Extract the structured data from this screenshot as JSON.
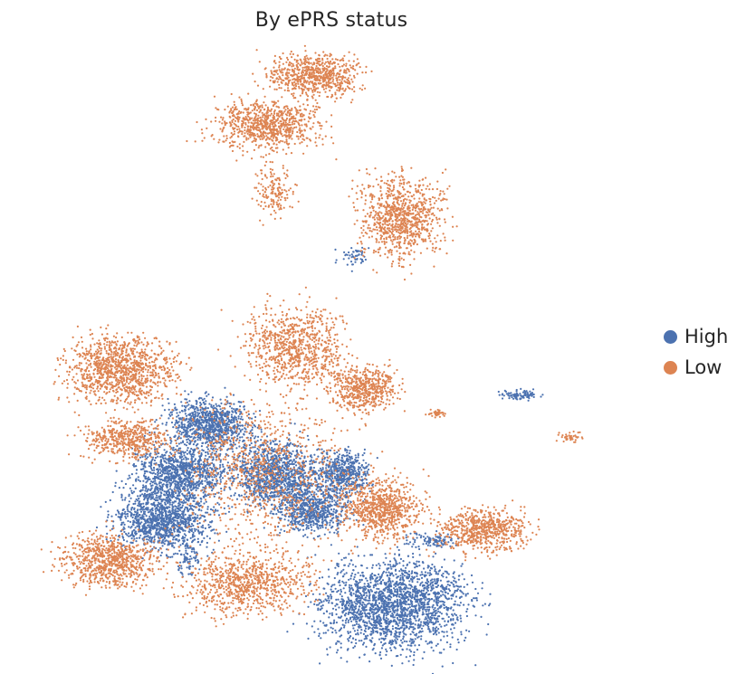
{
  "chart_data": {
    "type": "scatter",
    "title": "By ePRS status",
    "xlabel": "",
    "ylabel": "",
    "axes_visible": false,
    "grid": false,
    "legend_position": "right",
    "series": [
      {
        "name": "High",
        "color": "#4c72b0",
        "clusters": [
          {
            "x": 6.0,
            "y": 8.3,
            "spread": [
              1.6,
              1.0
            ],
            "points": 900
          },
          {
            "x": 5.0,
            "y": 6.4,
            "spread": [
              1.7,
              1.2
            ],
            "points": 1000
          },
          {
            "x": 4.4,
            "y": 4.6,
            "spread": [
              1.8,
              1.3
            ],
            "points": 1200
          },
          {
            "x": 8.2,
            "y": 6.4,
            "spread": [
              1.6,
              1.4
            ],
            "points": 1100
          },
          {
            "x": 9.6,
            "y": 5.0,
            "spread": [
              1.3,
              1.0
            ],
            "points": 700
          },
          {
            "x": 10.6,
            "y": 6.4,
            "spread": [
              1.0,
              0.9
            ],
            "points": 500
          },
          {
            "x": 12.3,
            "y": 1.3,
            "spread": [
              2.7,
              1.9
            ],
            "points": 2100
          },
          {
            "x": 5.3,
            "y": 3.0,
            "spread": [
              0.5,
              0.8
            ],
            "points": 80
          },
          {
            "x": 13.6,
            "y": 3.8,
            "spread": [
              0.8,
              0.3
            ],
            "points": 90
          },
          {
            "x": 16.7,
            "y": 9.4,
            "spread": [
              0.7,
              0.2
            ],
            "points": 90
          },
          {
            "x": 11.0,
            "y": 14.8,
            "spread": [
              0.6,
              0.4
            ],
            "points": 50
          }
        ]
      },
      {
        "name": "Low",
        "color": "#dd8452",
        "clusters": [
          {
            "x": 9.6,
            "y": 21.8,
            "spread": [
              1.7,
              0.9
            ],
            "points": 700
          },
          {
            "x": 8.0,
            "y": 19.9,
            "spread": [
              1.9,
              1.0
            ],
            "points": 800
          },
          {
            "x": 8.2,
            "y": 17.3,
            "spread": [
              0.7,
              1.2
            ],
            "points": 150
          },
          {
            "x": 12.6,
            "y": 16.3,
            "spread": [
              1.6,
              1.7
            ],
            "points": 900
          },
          {
            "x": 2.9,
            "y": 10.4,
            "spread": [
              2.0,
              1.4
            ],
            "points": 1100
          },
          {
            "x": 3.1,
            "y": 7.7,
            "spread": [
              1.6,
              0.8
            ],
            "points": 500
          },
          {
            "x": 2.5,
            "y": 3.0,
            "spread": [
              1.8,
              1.1
            ],
            "points": 800
          },
          {
            "x": 7.3,
            "y": 2.1,
            "spread": [
              2.2,
              1.3
            ],
            "points": 800
          },
          {
            "x": 8.9,
            "y": 11.3,
            "spread": [
              1.8,
              1.6
            ],
            "points": 800
          },
          {
            "x": 11.3,
            "y": 9.7,
            "spread": [
              1.3,
              0.9
            ],
            "points": 550
          },
          {
            "x": 11.9,
            "y": 5.0,
            "spread": [
              1.5,
              1.3
            ],
            "points": 800
          },
          {
            "x": 15.4,
            "y": 4.2,
            "spread": [
              1.6,
              0.9
            ],
            "points": 650
          },
          {
            "x": 13.8,
            "y": 8.7,
            "spread": [
              0.3,
              0.2
            ],
            "points": 40
          },
          {
            "x": 18.4,
            "y": 7.8,
            "spread": [
              0.5,
              0.2
            ],
            "points": 40
          },
          {
            "x": 7.8,
            "y": 6.5,
            "spread": [
              3.0,
              3.0
            ],
            "points": 900
          }
        ]
      }
    ]
  }
}
